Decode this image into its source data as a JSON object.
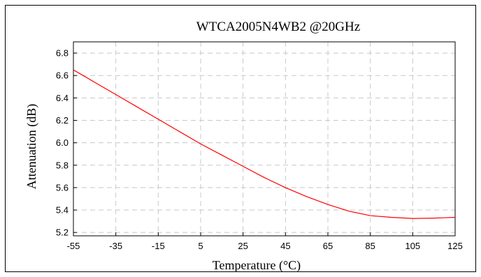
{
  "chart_data": {
    "type": "line",
    "title": "WTCA2005N4WB2  @20GHz",
    "xlabel": "Temperature (°C)",
    "ylabel": "Attenuation (dB)",
    "xlim": [
      -55,
      125
    ],
    "ylim": [
      5.17,
      6.9
    ],
    "x_ticks": [
      -55,
      -35,
      -15,
      5,
      25,
      45,
      65,
      85,
      105,
      125
    ],
    "x_tick_labels": [
      "-55",
      "-35",
      "-15",
      "5",
      "25",
      "45",
      "65",
      "85",
      "105",
      "125"
    ],
    "y_ticks": [
      5.2,
      5.4,
      5.6,
      5.8,
      6.0,
      6.2,
      6.4,
      6.6,
      6.8
    ],
    "y_tick_labels": [
      "5.2",
      "5.4",
      "5.6",
      "5.8",
      "6.0",
      "6.2",
      "6.4",
      "6.6",
      "6.8"
    ],
    "grid": true,
    "legend": "none",
    "series": [
      {
        "color": "#ff0000",
        "x": [
          -55,
          -45,
          -35,
          -25,
          -15,
          -5,
          5,
          15,
          25,
          35,
          45,
          55,
          65,
          75,
          85,
          95,
          105,
          115,
          125
        ],
        "y": [
          6.65,
          6.54,
          6.43,
          6.32,
          6.21,
          6.1,
          5.99,
          5.89,
          5.79,
          5.69,
          5.6,
          5.52,
          5.45,
          5.39,
          5.35,
          5.335,
          5.325,
          5.328,
          5.335
        ]
      }
    ]
  }
}
